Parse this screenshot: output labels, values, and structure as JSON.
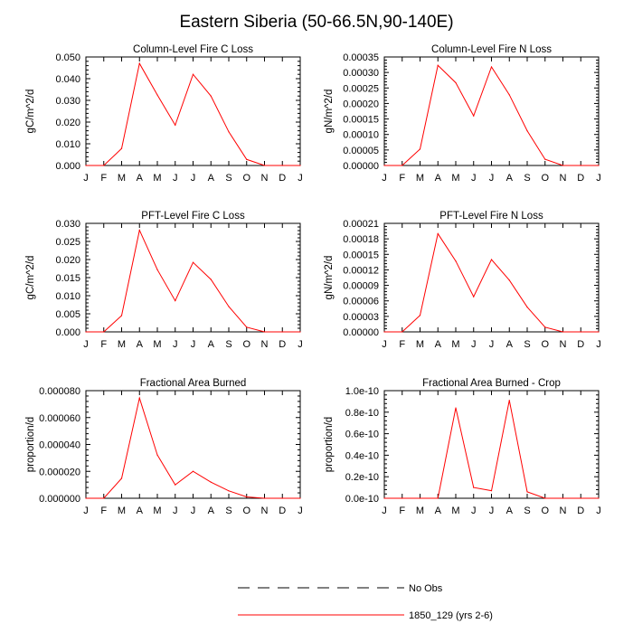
{
  "figure": {
    "title": "Eastern Siberia (50-66.5N,90-140E)"
  },
  "legend": {
    "items": [
      {
        "label": "No Obs",
        "style": "dashed",
        "color": "#000000"
      },
      {
        "label": "1850_129 (yrs 2-6)",
        "style": "solid",
        "color": "#ff0000"
      }
    ]
  },
  "chart_data": [
    {
      "type": "line",
      "title": "Column-Level Fire C Loss",
      "ylabel": "gC/m^2/d",
      "categories": [
        "J",
        "F",
        "M",
        "A",
        "M",
        "J",
        "J",
        "A",
        "S",
        "O",
        "N",
        "D",
        "J"
      ],
      "ylim": [
        0,
        0.05
      ],
      "yticks": [
        "0.000",
        "0.010",
        "0.020",
        "0.030",
        "0.040",
        "0.050"
      ],
      "series": [
        {
          "name": "1850_129 (yrs 2-6)",
          "color": "#ff0000",
          "values": [
            0.0,
            0.0,
            0.0078,
            0.047,
            0.0325,
            0.0186,
            0.042,
            0.032,
            0.0155,
            0.0028,
            0.0,
            0.0,
            0.0
          ]
        }
      ]
    },
    {
      "type": "line",
      "title": "Column-Level Fire N Loss",
      "ylabel": "gN/m^2/d",
      "categories": [
        "J",
        "F",
        "M",
        "A",
        "M",
        "J",
        "J",
        "A",
        "S",
        "O",
        "N",
        "D",
        "J"
      ],
      "ylim": [
        0,
        0.00035
      ],
      "yticks": [
        "0.00000",
        "0.00005",
        "0.00010",
        "0.00015",
        "0.00020",
        "0.00025",
        "0.00030",
        "0.00035"
      ],
      "series": [
        {
          "name": "1850_129 (yrs 2-6)",
          "color": "#ff0000",
          "values": [
            0.0,
            0.0,
            5.3e-05,
            0.000323,
            0.000267,
            0.00016,
            0.000318,
            0.000228,
            0.000112,
            2e-05,
            0.0,
            0.0,
            0.0
          ]
        }
      ]
    },
    {
      "type": "line",
      "title": "PFT-Level Fire C Loss",
      "ylabel": "gC/m^2/d",
      "categories": [
        "J",
        "F",
        "M",
        "A",
        "M",
        "J",
        "J",
        "A",
        "S",
        "O",
        "N",
        "D",
        "J"
      ],
      "ylim": [
        0,
        0.03
      ],
      "yticks": [
        "0.000",
        "0.005",
        "0.010",
        "0.015",
        "0.020",
        "0.025",
        "0.030"
      ],
      "series": [
        {
          "name": "1850_129 (yrs 2-6)",
          "color": "#ff0000",
          "values": [
            0.0,
            0.0,
            0.0045,
            0.0281,
            0.0172,
            0.0086,
            0.0192,
            0.0145,
            0.007,
            0.0013,
            0.0,
            0.0,
            0.0
          ]
        }
      ]
    },
    {
      "type": "line",
      "title": "PFT-Level Fire N Loss",
      "ylabel": "gN/m^2/d",
      "categories": [
        "J",
        "F",
        "M",
        "A",
        "M",
        "J",
        "J",
        "A",
        "S",
        "O",
        "N",
        "D",
        "J"
      ],
      "ylim": [
        0,
        0.00021
      ],
      "yticks": [
        "0.00000",
        "0.00003",
        "0.00006",
        "0.00009",
        "0.00012",
        "0.00015",
        "0.00018",
        "0.00021"
      ],
      "series": [
        {
          "name": "1850_129 (yrs 2-6)",
          "color": "#ff0000",
          "values": [
            0.0,
            0.0,
            3.2e-05,
            0.00019,
            0.000137,
            6.8e-05,
            0.00014,
            0.0001,
            4.8e-05,
            9e-06,
            0.0,
            0.0,
            0.0
          ]
        }
      ]
    },
    {
      "type": "line",
      "title": "Fractional Area Burned",
      "ylabel": "proportion/d",
      "categories": [
        "J",
        "F",
        "M",
        "A",
        "M",
        "J",
        "J",
        "A",
        "S",
        "O",
        "N",
        "D",
        "J"
      ],
      "ylim": [
        0,
        8e-05
      ],
      "yticks": [
        "0.000000",
        "0.000020",
        "0.000040",
        "0.000060",
        "0.000080"
      ],
      "series": [
        {
          "name": "1850_129 (yrs 2-6)",
          "color": "#ff0000",
          "values": [
            0.0,
            0.0,
            1.48e-05,
            7.45e-05,
            3.22e-05,
            1e-05,
            2e-05,
            1.2e-05,
            5.5e-06,
            1e-06,
            0.0,
            0.0,
            0.0
          ]
        }
      ]
    },
    {
      "type": "line",
      "title": "Fractional Area Burned - Crop",
      "ylabel": "proportion/d",
      "categories": [
        "J",
        "F",
        "M",
        "A",
        "M",
        "J",
        "J",
        "A",
        "S",
        "O",
        "N",
        "D",
        "J"
      ],
      "ylim": [
        0,
        1e-10
      ],
      "yticks": [
        "0.0e-10",
        "0.2e-10",
        "0.4e-10",
        "0.6e-10",
        "0.8e-10",
        "1.0e-10"
      ],
      "series": [
        {
          "name": "1850_129 (yrs 2-6)",
          "color": "#ff0000",
          "values": [
            0.0,
            0.0,
            0.0,
            0.0,
            8.4e-11,
            1e-11,
            7e-12,
            9.1e-11,
            6e-12,
            0.0,
            0.0,
            0.0,
            0.0
          ]
        }
      ]
    }
  ]
}
